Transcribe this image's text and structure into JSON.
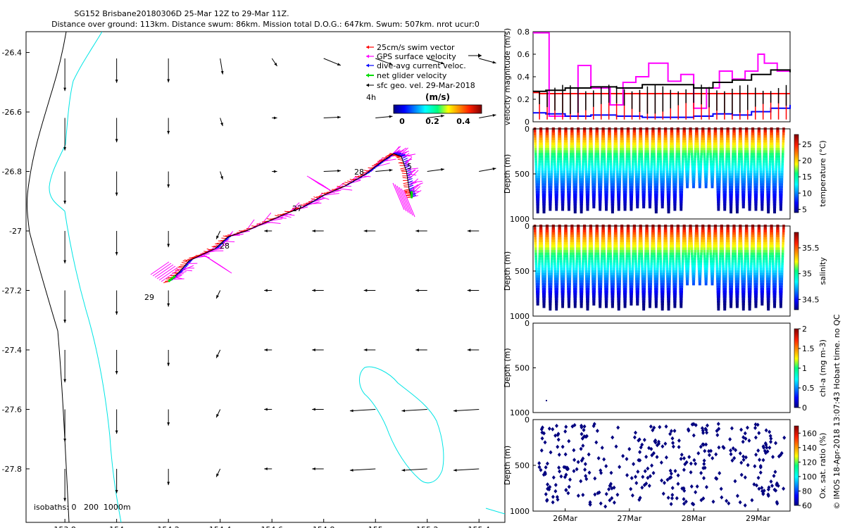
{
  "title": {
    "line1": "SG152 Brisbane20180306D 25-Mar 12Z to 29-Mar 11Z.",
    "line2": "Distance over ground: 113km. Distance swum: 86km. Mission total D.O.G.: 647km. Swum: 507km. nrot ucur:0"
  },
  "credit": "© IMOS 18-Apr-2018 13:07:43 Hobart time. no QC",
  "chart_data": [
    {
      "type": "map",
      "name": "glider-track-map",
      "x_ticks": [
        153.8,
        154,
        154.2,
        154.4,
        154.6,
        154.8,
        155,
        155.2,
        155.4
      ],
      "x_tick_labels": [
        "153.8",
        "154",
        "154.2",
        "154.4",
        "154.6",
        "154.8",
        "155",
        "155.2",
        "155.4"
      ],
      "y_ticks": [
        -26.4,
        -26.6,
        -26.8,
        -27,
        -27.2,
        -27.4,
        -27.6,
        -27.8
      ],
      "y_tick_labels": [
        "-26.4",
        "-26.6",
        "-26.8",
        "-27",
        "-27.2",
        "-27.4",
        "-27.6",
        "-27.8"
      ],
      "xlim": [
        153.65,
        155.5
      ],
      "ylim": [
        -27.98,
        -26.33
      ],
      "legend": {
        "placement": "top-right",
        "items": [
          {
            "label": "25cm/s swim vector",
            "color": "#ff0000"
          },
          {
            "label": "GPS surface velocity",
            "color": "#ff00ff"
          },
          {
            "label": "dive-avg current veloc.",
            "color": "#0000ff"
          },
          {
            "label": "net glider velocity",
            "color": "#00dd00"
          },
          {
            "label": "sfc geo. vel. 29-Mar-2018",
            "color": "#000000"
          }
        ]
      },
      "colorbar": {
        "label": "(m/s)",
        "side_label": "4h",
        "tick_labels": [
          "0",
          "0.2",
          "0.4"
        ],
        "range": [
          0,
          0.5
        ]
      },
      "isobath_label": "isobaths: 0   200  1000m",
      "day_labels": [
        {
          "text": "28",
          "lon": 155.04,
          "lat": -26.8
        },
        {
          "text": "5",
          "lon": 155.14,
          "lat": -26.77
        },
        {
          "text": "27",
          "lon": 154.73,
          "lat": -26.92
        },
        {
          "text": "28",
          "lon": 154.43,
          "lat": -27.06
        },
        {
          "text": "29",
          "lon": 154.19,
          "lat": -27.22
        }
      ],
      "track": [
        [
          154.2,
          -27.17
        ],
        [
          154.24,
          -27.14
        ],
        [
          154.28,
          -27.1
        ],
        [
          154.33,
          -27.08
        ],
        [
          154.38,
          -27.06
        ],
        [
          154.43,
          -27.02
        ],
        [
          154.5,
          -27.0
        ],
        [
          154.58,
          -26.97
        ],
        [
          154.66,
          -26.94
        ],
        [
          154.72,
          -26.92
        ],
        [
          154.8,
          -26.88
        ],
        [
          154.88,
          -26.85
        ],
        [
          154.96,
          -26.81
        ],
        [
          155.02,
          -26.77
        ],
        [
          155.07,
          -26.74
        ],
        [
          155.1,
          -26.75
        ],
        [
          155.12,
          -26.8
        ],
        [
          155.13,
          -26.86
        ],
        [
          155.14,
          -26.89
        ]
      ],
      "track_day": [
        29,
        29,
        28.8,
        28.6,
        28.4,
        28.2,
        28.0,
        27.8,
        27.6,
        27.4,
        27.2,
        27.0,
        26.8,
        26.6,
        26.4,
        26.2,
        26.0,
        25.8,
        25.6
      ]
    },
    {
      "type": "line",
      "name": "velocity-magnitude-panel",
      "ylabel": "velocity magnitude (m/s)",
      "ylim": [
        0,
        0.8
      ],
      "y_ticks": [
        0,
        0.2,
        0.4,
        0.6,
        0.8
      ],
      "y_tick_labels": [
        "0",
        "0.2",
        "0.4",
        "0.6",
        "0.8"
      ],
      "xlim": [
        25.5,
        29.5
      ],
      "series": [
        {
          "name": "25cm/s swim vector",
          "color": "#ff0000",
          "x": [
            25.5,
            25.6,
            26.2,
            27.0,
            27.8,
            28.2,
            28.6,
            29.0,
            29.5
          ],
          "values": [
            0.26,
            0.25,
            0.25,
            0.25,
            0.25,
            0.25,
            0.25,
            0.25,
            0.25
          ]
        },
        {
          "name": "GPS surface velocity",
          "color": "#ff00ff",
          "x": [
            25.5,
            25.65,
            25.75,
            26.2,
            26.4,
            26.7,
            26.9,
            27.1,
            27.3,
            27.6,
            27.8,
            28.0,
            28.2,
            28.4,
            28.6,
            28.8,
            29.0,
            29.1,
            29.3,
            29.5
          ],
          "values": [
            0.79,
            0.79,
            0.05,
            0.5,
            0.3,
            0.15,
            0.35,
            0.4,
            0.52,
            0.36,
            0.42,
            0.12,
            0.3,
            0.45,
            0.38,
            0.45,
            0.6,
            0.52,
            0.45,
            0.45
          ]
        },
        {
          "name": "dive-avg current veloc.",
          "color": "#0000ff",
          "x": [
            25.5,
            25.7,
            26.0,
            26.4,
            26.8,
            27.2,
            27.6,
            28.0,
            28.3,
            28.6,
            28.9,
            29.2,
            29.5
          ],
          "values": [
            0.08,
            0.07,
            0.05,
            0.06,
            0.05,
            0.04,
            0.04,
            0.05,
            0.07,
            0.06,
            0.09,
            0.12,
            0.15
          ]
        },
        {
          "name": "sfc geo. vel.",
          "color": "#000000",
          "x": [
            25.5,
            25.7,
            26.0,
            26.4,
            26.8,
            27.2,
            27.6,
            28.0,
            28.3,
            28.6,
            28.9,
            29.2,
            29.5
          ],
          "values": [
            0.27,
            0.28,
            0.3,
            0.31,
            0.3,
            0.33,
            0.33,
            0.3,
            0.35,
            0.37,
            0.42,
            0.46,
            0.44
          ]
        }
      ]
    },
    {
      "type": "scatter",
      "name": "temperature-profile",
      "ylabel": "Depth (m)",
      "colorbar_label": "temperature (°C)",
      "y_ticks": [
        0,
        500,
        1000
      ],
      "y_tick_labels": [
        "0",
        "500",
        "1000"
      ],
      "ylim": [
        1000,
        0
      ],
      "colorbar_ticks": [
        "5",
        "10",
        "15",
        "20",
        "25"
      ],
      "colorbar_range": [
        4,
        28
      ]
    },
    {
      "type": "scatter",
      "name": "salinity-profile",
      "ylabel": "Depth (m)",
      "colorbar_label": "salinity",
      "y_ticks": [
        0,
        500,
        1000
      ],
      "y_tick_labels": [
        "0",
        "500",
        "1000"
      ],
      "ylim": [
        1000,
        0
      ],
      "colorbar_ticks": [
        "34.5",
        "35",
        "35.5"
      ],
      "colorbar_range": [
        34.3,
        35.8
      ]
    },
    {
      "type": "scatter",
      "name": "chlorophyll-profile",
      "ylabel": "Depth (m)",
      "colorbar_label": "chl-a (mg m-3)",
      "y_ticks": [
        0,
        500,
        1000
      ],
      "y_tick_labels": [
        "0",
        "500",
        "1000"
      ],
      "ylim": [
        1000,
        0
      ],
      "colorbar_ticks": [
        "0",
        "0.5",
        "1",
        "1.5",
        "2"
      ],
      "colorbar_range": [
        0,
        2
      ]
    },
    {
      "type": "scatter",
      "name": "oxygen-saturation-profile",
      "ylabel": "Depth (m)",
      "colorbar_label": "Ox. sat. ratio (%)",
      "y_ticks": [
        0,
        500,
        1000
      ],
      "y_tick_labels": [
        "0",
        "500",
        "1000"
      ],
      "ylim": [
        1000,
        0
      ],
      "colorbar_ticks": [
        "60",
        "80",
        "100",
        "120",
        "140",
        "160"
      ],
      "colorbar_range": [
        60,
        170
      ],
      "x_tick_labels": [
        "26Mar",
        "27Mar",
        "28Mar",
        "29Mar"
      ],
      "x_ticks": [
        26,
        27,
        28,
        29
      ]
    }
  ],
  "colors": {
    "coast": "#00e5e5",
    "track": "#ff00ff"
  }
}
